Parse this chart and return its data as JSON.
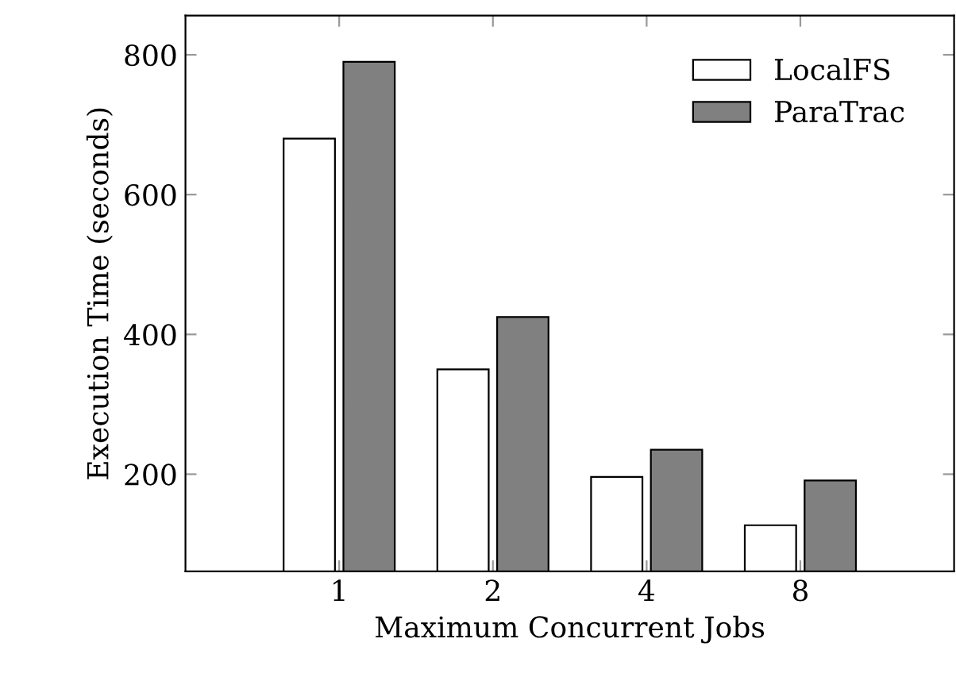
{
  "chart_data": {
    "type": "bar",
    "xlabel": "Maximum Concurrent Jobs",
    "ylabel": "Execution Time (seconds)",
    "categories": [
      "1",
      "2",
      "4",
      "8"
    ],
    "series": [
      {
        "name": "LocalFS",
        "color": "#ffffff",
        "values": [
          680,
          350,
          196,
          127
        ]
      },
      {
        "name": "ParaTrac",
        "color": "#808080",
        "values": [
          790,
          425,
          235,
          191
        ]
      }
    ],
    "ylim": [
      61,
      856
    ],
    "yticks": [
      200,
      400,
      600,
      800
    ],
    "grid": false,
    "legend": "top right"
  }
}
